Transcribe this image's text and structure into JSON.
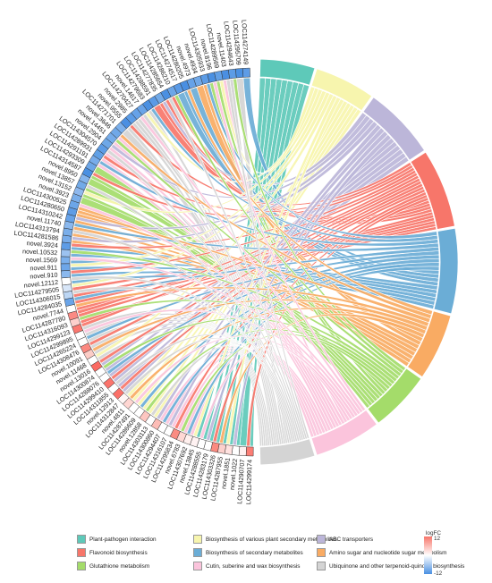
{
  "genes": [
    "LOC114299174",
    "LOC114290707",
    "novel.1022",
    "novel.1851",
    "LOC114287955",
    "LOC114303326",
    "LOC114283179",
    "LOC114288555",
    "novel.13845",
    "LOC114307692",
    "novel.6783",
    "LOC114295834",
    "LOC114316107",
    "LOC114294407",
    "LOC114300860",
    "LOC114303113",
    "novel.12858",
    "LOC114286609",
    "LOC114287491",
    "novel.4811",
    "LOC114312847",
    "novel.12913",
    "LOC114311855",
    "LOC114299410",
    "LOC114288076",
    "LOC114300874",
    "novel.13016",
    "novel.11468",
    "novel.10091",
    "LOC114308476",
    "LOC114265224",
    "LOC114299895",
    "LOC114299123",
    "LOC114316093",
    "LOC114287780",
    "novel.7744",
    "LOC114284035",
    "LOC114306015",
    "LOC114279505",
    "novel.12112",
    "novel.910",
    "novel.911",
    "novel.1569",
    "novel.10532",
    "novel.3924",
    "LOC114281586",
    "LOC114313794",
    "novel.11740",
    "LOC114310242",
    "LOC114280650",
    "LOC114300525",
    "novel.3923",
    "novel.13152",
    "novel.13857",
    "novel.8950",
    "LOC114314587",
    "LOC114293309",
    "LOC114291191",
    "LOC114289931",
    "LOC114304570",
    "novel.2904",
    "novel.14451",
    "novel.3646",
    "LOC114271701",
    "novel.9555",
    "novel.2985",
    "LOC114270427",
    "novel.14617",
    "LOC114279683",
    "LOC114288591",
    "LOC114277835",
    "LOC114285654",
    "LOC114286210",
    "LOC114274517",
    "LOC114280205",
    "novel.4973",
    "novel.4934",
    "LOC114305933",
    "novel.8196",
    "LOC114289569",
    "novel.11403",
    "LOC114294643",
    "LOC114295709",
    "LOC114274149"
  ],
  "gene_colors": [
    "#fb7d74",
    "#fff0f0",
    "#ffffff",
    "#ffe2e0",
    "#fcd0cc",
    "#fb8a80",
    "#ffffff",
    "#ffffff",
    "#fff2f2",
    "#fff0ee",
    "#ffd8d4",
    "#fb8c82",
    "#ffffff",
    "#ffffff",
    "#fdbcb6",
    "#ffffff",
    "#fdc6c0",
    "#ffffff",
    "#ffffff",
    "#ffd6d2",
    "#fff6f5",
    "#fb7068",
    "#ffffff",
    "#fb746c",
    "#ffffff",
    "#ffffff",
    "#fb6a62",
    "#ffffff",
    "#fcccc6",
    "#fb8880",
    "#ffffff",
    "#ffffff",
    "#fb7870",
    "#fdd0cc",
    "#fb8a84",
    "#ffffff",
    "#6aa4e8",
    "#bcd6f4",
    "#d8e6f8",
    "#ffffff",
    "#8ab8ee",
    "#6ea6e8",
    "#7cb0ec",
    "#9cc2f0",
    "#5e9ce6",
    "#78acea",
    "#7aaeea",
    "#8ab8ee",
    "#66a2e8",
    "#5e9ce6",
    "#6ca6e8",
    "#7aaeea",
    "#8eb8ee",
    "#72aae8",
    "#84b4ec",
    "#4a90e2",
    "#6ca6e8",
    "#78acea",
    "#60a0e6",
    "#5c9ce6",
    "#6ea8e8",
    "#76acea",
    "#70a8e8",
    "#7cb0ec",
    "#4a8fe2",
    "#5c9ce6",
    "#66a2e8",
    "#6aa4e8",
    "#4a90e2",
    "#5a9ae6",
    "#72aae8",
    "#4a90e2",
    "#6ca6e8",
    "#5a9ae6",
    "#4a8fe2",
    "#66a2e8",
    "#70a8e8",
    "#5c9ce6",
    "#4a90e2",
    "#62a0e6",
    "#4a8fe2",
    "#5c9ce6",
    "#4a90e2",
    "#5e9ce6"
  ],
  "pathways": [
    {
      "name": "Plant-pathogen interaction",
      "color": "#5ec9b9"
    },
    {
      "name": "Biosynthesis of various plant secondary metabolites",
      "color": "#f7f5ae"
    },
    {
      "name": "ABC transporters",
      "color": "#bcb6d9"
    },
    {
      "name": "Flavonoid biosynthesis",
      "color": "#f7766a"
    },
    {
      "name": "Biosynthesis of secondary metabolites",
      "color": "#6badd6"
    },
    {
      "name": "Amino sugar and nucleotide sugar metabolism",
      "color": "#f9ab63"
    },
    {
      "name": "Glutathione metabolism",
      "color": "#a4dc6a"
    },
    {
      "name": "Cutin, suberine and wax biosynthesis",
      "color": "#fbc4dc"
    },
    {
      "name": "Ubiquinone and other terpenoid-quinone biosynthesis",
      "color": "#d4d4d4"
    }
  ],
  "pathway_weights": [
    9,
    10,
    12,
    13,
    14,
    11,
    10,
    11,
    9
  ],
  "links": [
    [
      0,
      0
    ],
    [
      1,
      0
    ],
    [
      2,
      0
    ],
    [
      3,
      0
    ],
    [
      4,
      0
    ],
    [
      5,
      0
    ],
    [
      6,
      0
    ],
    [
      7,
      0
    ],
    [
      8,
      0
    ],
    [
      9,
      7
    ],
    [
      10,
      7
    ],
    [
      11,
      7
    ],
    [
      12,
      7
    ],
    [
      13,
      7
    ],
    [
      14,
      7
    ],
    [
      15,
      1
    ],
    [
      16,
      1
    ],
    [
      17,
      1
    ],
    [
      18,
      1
    ],
    [
      19,
      1
    ],
    [
      20,
      1
    ],
    [
      21,
      2
    ],
    [
      22,
      2
    ],
    [
      23,
      2
    ],
    [
      24,
      2
    ],
    [
      25,
      2
    ],
    [
      26,
      2
    ],
    [
      27,
      8
    ],
    [
      28,
      8
    ],
    [
      29,
      8
    ],
    [
      30,
      8
    ],
    [
      31,
      8
    ],
    [
      32,
      8
    ],
    [
      33,
      3
    ],
    [
      34,
      3
    ],
    [
      35,
      3
    ],
    [
      36,
      3
    ],
    [
      37,
      3
    ],
    [
      38,
      3
    ],
    [
      39,
      4
    ],
    [
      40,
      4
    ],
    [
      41,
      4
    ],
    [
      42,
      4
    ],
    [
      43,
      4
    ],
    [
      44,
      4
    ],
    [
      45,
      5
    ],
    [
      46,
      5
    ],
    [
      47,
      5
    ],
    [
      48,
      5
    ],
    [
      49,
      5
    ],
    [
      50,
      5
    ],
    [
      51,
      6
    ],
    [
      52,
      6
    ],
    [
      53,
      6
    ],
    [
      54,
      6
    ],
    [
      55,
      6
    ],
    [
      56,
      6
    ],
    [
      57,
      7
    ],
    [
      58,
      7
    ],
    [
      59,
      7
    ],
    [
      60,
      7
    ],
    [
      61,
      7
    ],
    [
      62,
      7
    ],
    [
      63,
      8
    ],
    [
      64,
      8
    ],
    [
      65,
      8
    ],
    [
      66,
      8
    ],
    [
      67,
      8
    ],
    [
      68,
      8
    ],
    [
      69,
      3
    ],
    [
      70,
      3
    ],
    [
      71,
      3
    ],
    [
      72,
      3
    ],
    [
      73,
      4
    ],
    [
      74,
      4
    ],
    [
      75,
      4
    ],
    [
      76,
      5
    ],
    [
      77,
      5
    ],
    [
      78,
      6
    ],
    [
      79,
      6
    ],
    [
      80,
      7
    ],
    [
      81,
      8
    ],
    [
      82,
      8
    ],
    [
      83,
      4
    ],
    [
      0,
      3
    ],
    [
      5,
      3
    ],
    [
      11,
      3
    ],
    [
      21,
      3
    ],
    [
      23,
      3
    ],
    [
      26,
      3
    ],
    [
      29,
      3
    ],
    [
      32,
      3
    ],
    [
      34,
      3
    ],
    [
      40,
      3
    ],
    [
      44,
      3
    ],
    [
      55,
      3
    ],
    [
      58,
      3
    ],
    [
      64,
      3
    ],
    [
      2,
      2
    ],
    [
      6,
      2
    ],
    [
      12,
      2
    ],
    [
      14,
      2
    ],
    [
      45,
      2
    ],
    [
      48,
      2
    ],
    [
      60,
      2
    ],
    [
      70,
      2
    ],
    [
      3,
      1
    ],
    [
      8,
      1
    ],
    [
      27,
      1
    ],
    [
      38,
      1
    ],
    [
      41,
      1
    ],
    [
      52,
      1
    ],
    [
      67,
      1
    ],
    [
      79,
      1
    ],
    [
      9,
      4
    ],
    [
      13,
      4
    ],
    [
      17,
      4
    ],
    [
      24,
      4
    ],
    [
      30,
      4
    ],
    [
      36,
      4
    ],
    [
      47,
      4
    ],
    [
      57,
      4
    ],
    [
      68,
      4
    ],
    [
      77,
      4
    ],
    [
      10,
      6
    ],
    [
      16,
      6
    ],
    [
      25,
      6
    ],
    [
      33,
      6
    ],
    [
      43,
      6
    ],
    [
      61,
      6
    ],
    [
      72,
      6
    ],
    [
      81,
      6
    ],
    [
      4,
      5
    ],
    [
      19,
      5
    ],
    [
      28,
      5
    ],
    [
      35,
      5
    ],
    [
      49,
      5
    ],
    [
      62,
      5
    ],
    [
      74,
      5
    ],
    [
      7,
      7
    ],
    [
      18,
      7
    ],
    [
      31,
      7
    ],
    [
      42,
      7
    ],
    [
      50,
      7
    ],
    [
      66,
      7
    ],
    [
      78,
      7
    ],
    [
      15,
      8
    ],
    [
      20,
      8
    ],
    [
      22,
      8
    ],
    [
      37,
      8
    ],
    [
      39,
      8
    ],
    [
      46,
      8
    ],
    [
      53,
      8
    ],
    [
      59,
      8
    ],
    [
      65,
      8
    ],
    [
      71,
      8
    ],
    [
      80,
      8
    ]
  ],
  "colorbar": {
    "title": "logFC",
    "max": "12",
    "min": "-12",
    "colors": [
      "#f7766a",
      "#ffffff",
      "#4a90e2"
    ]
  }
}
